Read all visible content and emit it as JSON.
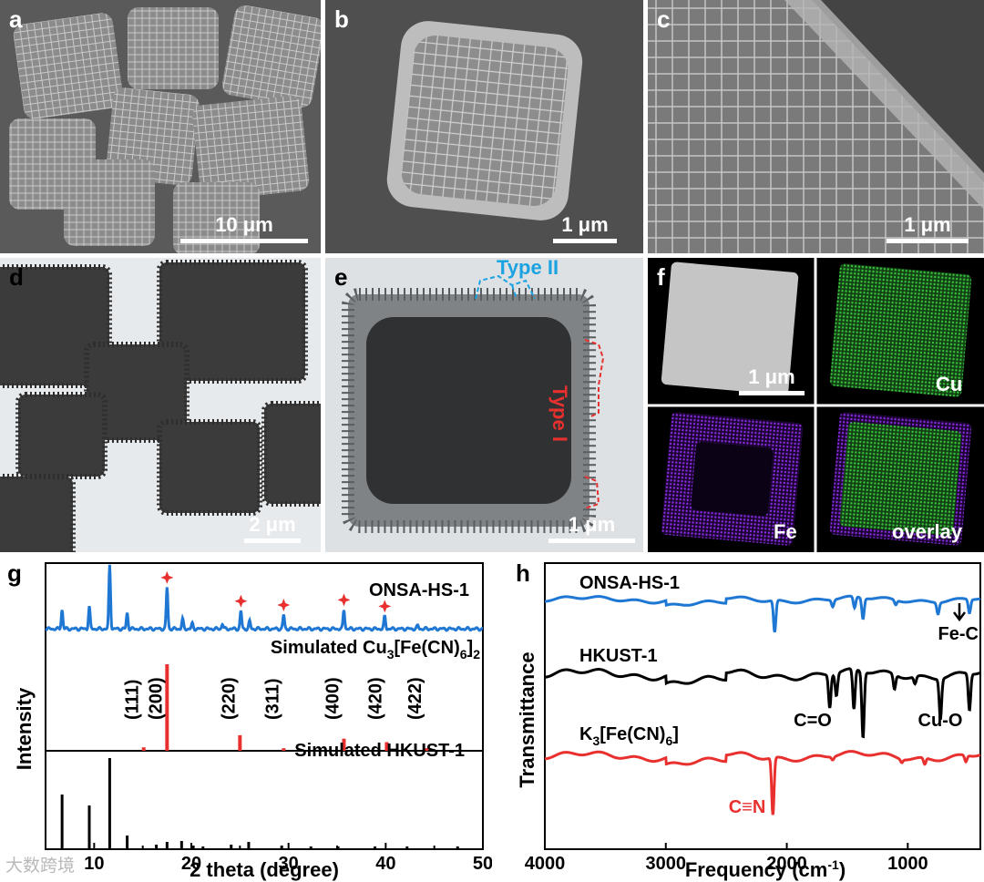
{
  "panels": {
    "a": {
      "label": "a",
      "scale": "10 μm"
    },
    "b": {
      "label": "b",
      "scale": "1 μm"
    },
    "c": {
      "label": "c",
      "scale": "1 μm"
    },
    "d": {
      "label": "d",
      "scale": "2 μm"
    },
    "e": {
      "label": "e",
      "scale": "1 μm",
      "type1": "Type I",
      "type2": "Type II"
    },
    "f": {
      "label": "f",
      "scale": "1 μm",
      "cu": "Cu",
      "fe": "Fe",
      "overlay": "overlay"
    }
  },
  "colors": {
    "blue": "#1f77d4",
    "red": "#e8312f",
    "black": "#000000",
    "cyan": "#1aa3e0",
    "green": "#36c43a",
    "purple": "#8a2be2"
  },
  "chart_data": [
    {
      "type": "line",
      "panel_label": "g",
      "xlabel": "2 theta (degree)",
      "ylabel": "Intensity",
      "xlim": [
        5,
        50
      ],
      "xticks": [
        10,
        20,
        30,
        40,
        50
      ],
      "series": [
        {
          "name": "ONSA-HS-1",
          "color": "#1f77d4",
          "peaks": [
            [
              6.7,
              0.3
            ],
            [
              9.5,
              0.35
            ],
            [
              11.6,
              1.0
            ],
            [
              13.4,
              0.25
            ],
            [
              17.5,
              0.65
            ],
            [
              19.1,
              0.15
            ],
            [
              20.1,
              0.08
            ],
            [
              23.2,
              0.08
            ],
            [
              25.1,
              0.28
            ],
            [
              26.0,
              0.12
            ],
            [
              29.5,
              0.22
            ],
            [
              35.7,
              0.3
            ],
            [
              39.9,
              0.2
            ],
            [
              43.3,
              0.05
            ]
          ],
          "markers": [
            17.5,
            25.1,
            29.5,
            35.7,
            39.9
          ]
        },
        {
          "name": "Simulated Cu3[Fe(CN)6]2",
          "name_main": "Simulated Cu",
          "name_sub1": "3",
          "name_mid": "[Fe(CN)",
          "name_sub2": "6",
          "name_end": "]",
          "name_sub3": "2",
          "color": "#e8312f",
          "sticks": [
            [
              15.1,
              0.04
            ],
            [
              17.5,
              1.0
            ],
            [
              25.0,
              0.18
            ],
            [
              29.5,
              0.03
            ],
            [
              35.7,
              0.14
            ],
            [
              40.1,
              0.1
            ],
            [
              44.2,
              0.03
            ]
          ],
          "hkl": [
            "(111)",
            "(200)",
            "(220)",
            "(311)",
            "(400)",
            "(420)",
            "(422)"
          ],
          "hkl_x": [
            15.1,
            17.5,
            25.0,
            29.5,
            35.7,
            40.1,
            44.2
          ]
        },
        {
          "name": "Simulated HKUST-1",
          "color": "#000000",
          "sticks": [
            [
              6.7,
              0.6
            ],
            [
              9.5,
              0.48
            ],
            [
              11.6,
              1.0
            ],
            [
              13.4,
              0.15
            ],
            [
              16.4,
              0.05
            ],
            [
              17.5,
              0.08
            ],
            [
              19.0,
              0.09
            ],
            [
              20.2,
              0.04
            ],
            [
              21.2,
              0.03
            ],
            [
              24.1,
              0.05
            ],
            [
              25.9,
              0.08
            ],
            [
              29.3,
              0.04
            ],
            [
              32.3,
              0.03
            ],
            [
              35.1,
              0.03
            ],
            [
              38.9,
              0.03
            ],
            [
              42.2,
              0.03
            ],
            [
              47.4,
              0.03
            ]
          ]
        }
      ]
    },
    {
      "type": "line",
      "panel_label": "h",
      "xlabel": "Frequency (cm",
      "xlabel_sup": "-1",
      "xlabel_end": ")",
      "ylabel": "Transmittance",
      "xlim": [
        4000,
        400
      ],
      "xticks": [
        4000,
        3000,
        2000,
        1000
      ],
      "series": [
        {
          "name": "ONSA-HS-1",
          "color": "#1f77d4",
          "dips": [
            [
              2100,
              0.7
            ],
            [
              1620,
              0.15
            ],
            [
              1440,
              0.25
            ],
            [
              1370,
              0.45
            ],
            [
              1100,
              0.1
            ],
            [
              750,
              0.25
            ],
            [
              490,
              0.3
            ]
          ]
        },
        {
          "name": "HKUST-1",
          "color": "#000000",
          "dips": [
            [
              1645,
              0.45
            ],
            [
              1590,
              0.3
            ],
            [
              1445,
              0.55
            ],
            [
              1370,
              0.9
            ],
            [
              1110,
              0.2
            ],
            [
              940,
              0.1
            ],
            [
              730,
              0.55
            ],
            [
              490,
              0.5
            ]
          ]
        },
        {
          "name": "K3[Fe(CN)6]",
          "name_main": "K",
          "name_sub1": "3",
          "name_mid": "[Fe(CN)",
          "name_sub2": "6",
          "name_end": "]",
          "color": "#e8312f",
          "dips": [
            [
              2115,
              0.9
            ],
            [
              1620,
              0.05
            ],
            [
              1050,
              0.05
            ],
            [
              860,
              0.1
            ],
            [
              520,
              0.1
            ]
          ]
        }
      ],
      "annotations": {
        "fec": "Fe-C",
        "co": "C=O",
        "cuo": "Cu-O",
        "cn": "C≡N"
      }
    }
  ],
  "watermark": "大数跨境"
}
